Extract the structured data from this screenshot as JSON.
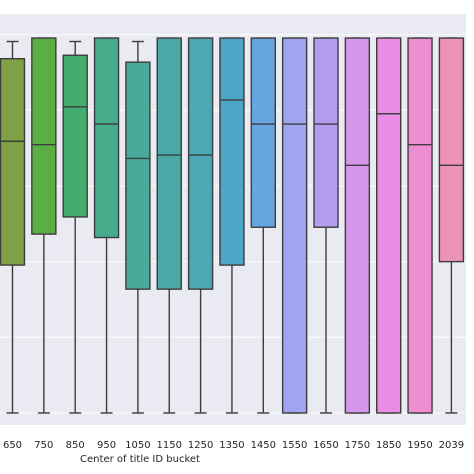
{
  "chart_data": {
    "type": "box",
    "title": "",
    "xlabel": "Center of title ID bucket",
    "ylabel": "",
    "categories": [
      "650",
      "750",
      "850",
      "950",
      "1050",
      "1150",
      "1250",
      "1350",
      "1450",
      "1550",
      "1650",
      "1750",
      "1850",
      "1950",
      "2039"
    ],
    "boxes": [
      {
        "category": "650",
        "whisker_low": 0.0,
        "q1": 4.3,
        "median": 7.9,
        "q3": 10.3,
        "whisker_high": 10.8,
        "color": "#7fa146"
      },
      {
        "category": "750",
        "whisker_low": 0.0,
        "q1": 5.2,
        "median": 7.8,
        "q3": 10.9,
        "whisker_high": 10.9,
        "color": "#5aae44"
      },
      {
        "category": "850",
        "whisker_low": 0.0,
        "q1": 5.7,
        "median": 8.9,
        "q3": 10.4,
        "whisker_high": 10.8,
        "color": "#44ad6e"
      },
      {
        "category": "950",
        "whisker_low": 0.0,
        "q1": 5.1,
        "median": 8.4,
        "q3": 10.9,
        "whisker_high": 10.9,
        "color": "#47ab8c"
      },
      {
        "category": "1050",
        "whisker_low": 0.0,
        "q1": 3.6,
        "median": 7.4,
        "q3": 10.2,
        "whisker_high": 10.8,
        "color": "#49aa9c"
      },
      {
        "category": "1150",
        "whisker_low": 0.0,
        "q1": 3.6,
        "median": 7.5,
        "q3": 10.9,
        "whisker_high": 10.9,
        "color": "#4aa9a7"
      },
      {
        "category": "1250",
        "whisker_low": 0.0,
        "q1": 3.6,
        "median": 7.5,
        "q3": 10.9,
        "whisker_high": 10.9,
        "color": "#4ba8b4"
      },
      {
        "category": "1350",
        "whisker_low": 0.0,
        "q1": 4.3,
        "median": 9.1,
        "q3": 10.9,
        "whisker_high": 10.9,
        "color": "#4da6c5"
      },
      {
        "category": "1450",
        "whisker_low": 0.0,
        "q1": 5.4,
        "median": 8.4,
        "q3": 10.9,
        "whisker_high": 10.9,
        "color": "#67a5e0"
      },
      {
        "category": "1550",
        "whisker_low": 0.0,
        "q1": 0.0,
        "median": 8.4,
        "q3": 10.9,
        "whisker_high": 10.9,
        "color": "#a0a4f1"
      },
      {
        "category": "1650",
        "whisker_low": 0.0,
        "q1": 5.4,
        "median": 8.4,
        "q3": 10.9,
        "whisker_high": 10.9,
        "color": "#b49cf0"
      },
      {
        "category": "1750",
        "whisker_low": 0.0,
        "q1": 0.0,
        "median": 7.2,
        "q3": 10.9,
        "whisker_high": 10.9,
        "color": "#d597e9"
      },
      {
        "category": "1850",
        "whisker_low": 0.0,
        "q1": 0.0,
        "median": 8.7,
        "q3": 10.9,
        "whisker_high": 10.9,
        "color": "#e98ee4"
      },
      {
        "category": "1950",
        "whisker_low": 0.0,
        "q1": 0.0,
        "median": 7.8,
        "q3": 10.9,
        "whisker_high": 10.9,
        "color": "#ee8dd2"
      },
      {
        "category": "2039",
        "whisker_low": 0.0,
        "q1": 4.4,
        "median": 7.2,
        "q3": 10.9,
        "whisker_high": 10.9,
        "color": "#ec93b7"
      }
    ],
    "gridlines_y": [
      0.0,
      2.2,
      4.4,
      6.6,
      8.8,
      11.0
    ],
    "ylim": [
      -0.35,
      11.6
    ],
    "grid": true,
    "background_color": "#eaeaf2",
    "edge_color": "#3d3d3d"
  }
}
